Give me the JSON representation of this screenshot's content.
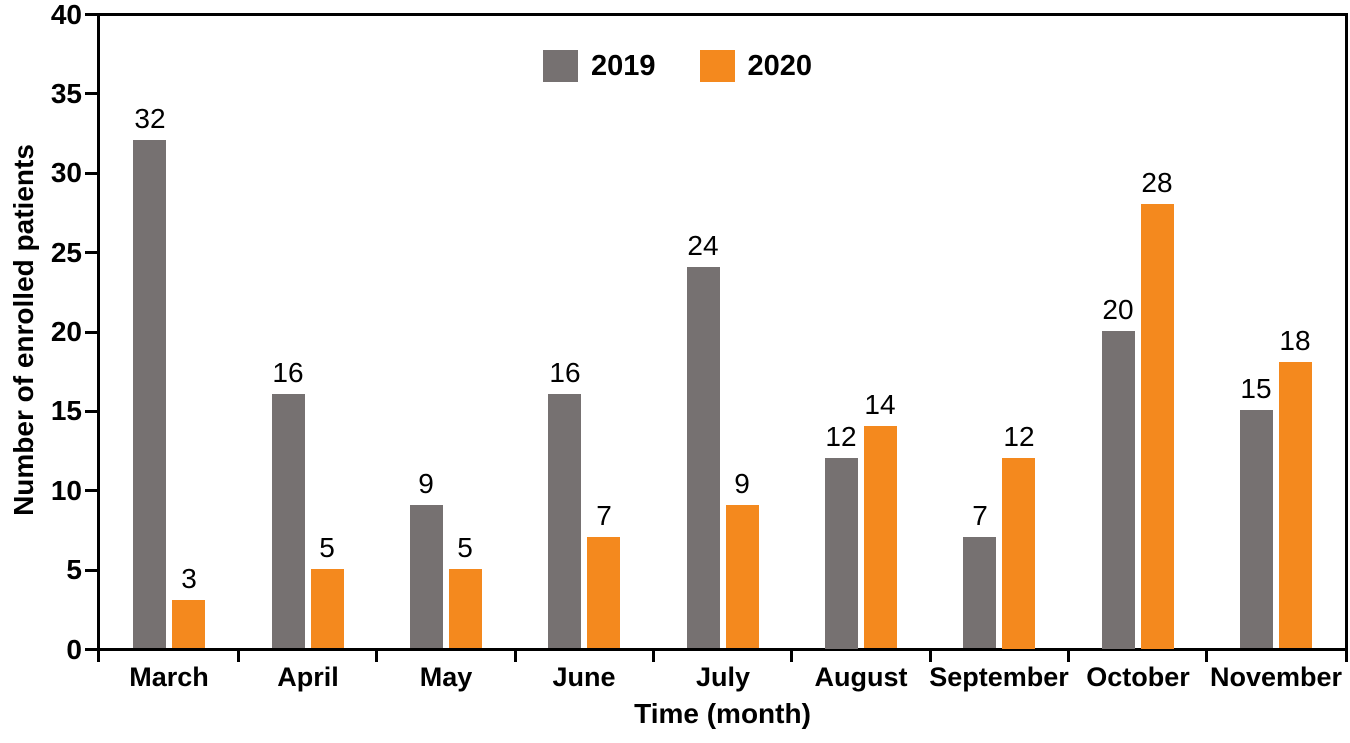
{
  "chart_data": {
    "type": "bar",
    "title": "",
    "xlabel": "Time (month)",
    "ylabel": "Number of enrolled patients",
    "categories": [
      "March",
      "April",
      "May",
      "June",
      "July",
      "August",
      "September",
      "October",
      "November"
    ],
    "series": [
      {
        "name": "2019",
        "color": "#767171",
        "values": [
          32,
          16,
          9,
          16,
          24,
          12,
          7,
          20,
          15
        ]
      },
      {
        "name": "2020",
        "color": "#F4891E",
        "values": [
          3,
          5,
          5,
          7,
          9,
          14,
          12,
          28,
          18
        ]
      }
    ],
    "ylim": [
      0,
      40
    ],
    "ytick_step": 5,
    "grid": false,
    "plot_frame": true,
    "bar_labels": true,
    "legend_position": "top-center",
    "axis_color": "#000000",
    "text_color": "#000000",
    "background_color": "#ffffff"
  }
}
